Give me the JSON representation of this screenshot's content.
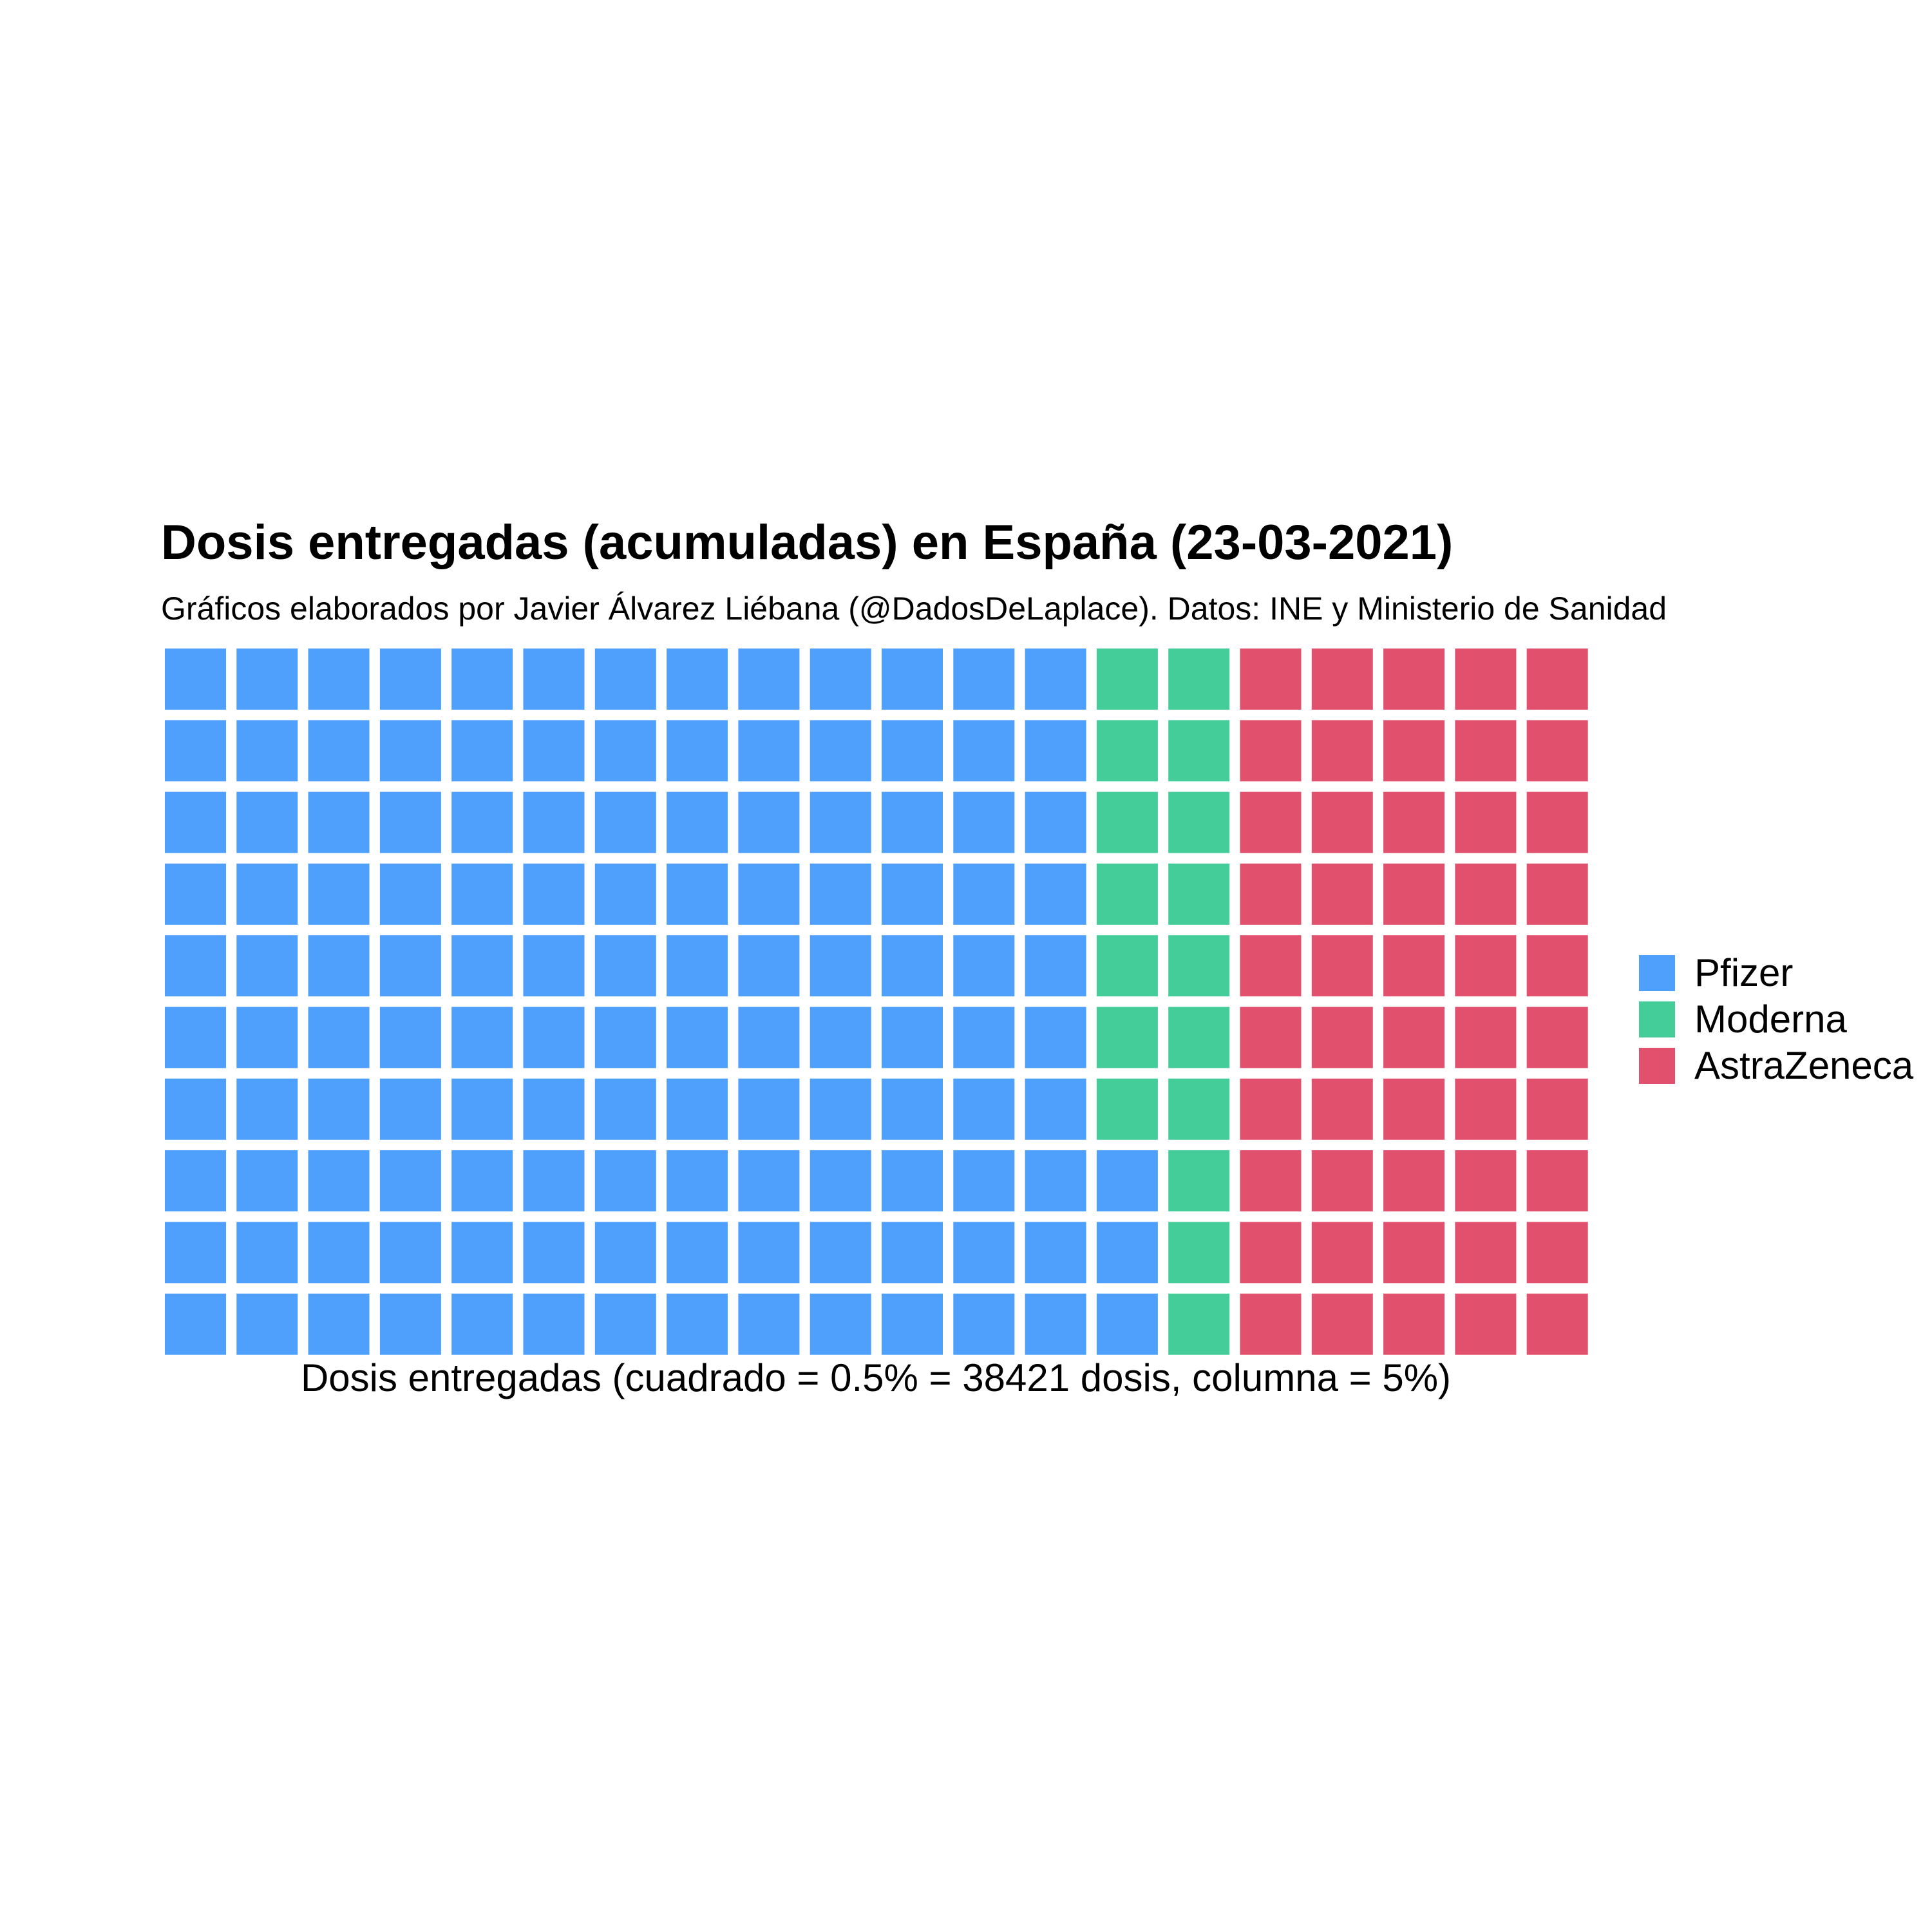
{
  "chart_data": {
    "type": "waffle",
    "title": "Dosis entregadas (acumuladas) en España (23-03-2021)",
    "subtitle": "Gráficos elaborados por Javier Álvarez Liébana (@DadosDeLaplace). Datos: INE y Ministerio de Sanidad",
    "xlabel": "Dosis entregadas (cuadrado = 0.5% = 38421 dosis, columna = 5%)",
    "rows": 10,
    "columns": 20,
    "fill_order": "column-wise, bottom to top",
    "series": [
      {
        "name": "Pfizer",
        "squares": 133,
        "color": "#4f9ffc"
      },
      {
        "name": "Moderna",
        "squares": 17,
        "color": "#44cc99"
      },
      {
        "name": "AstraZeneca",
        "squares": 50,
        "color": "#e1516d"
      }
    ],
    "legend_position": "right",
    "grid": false
  }
}
